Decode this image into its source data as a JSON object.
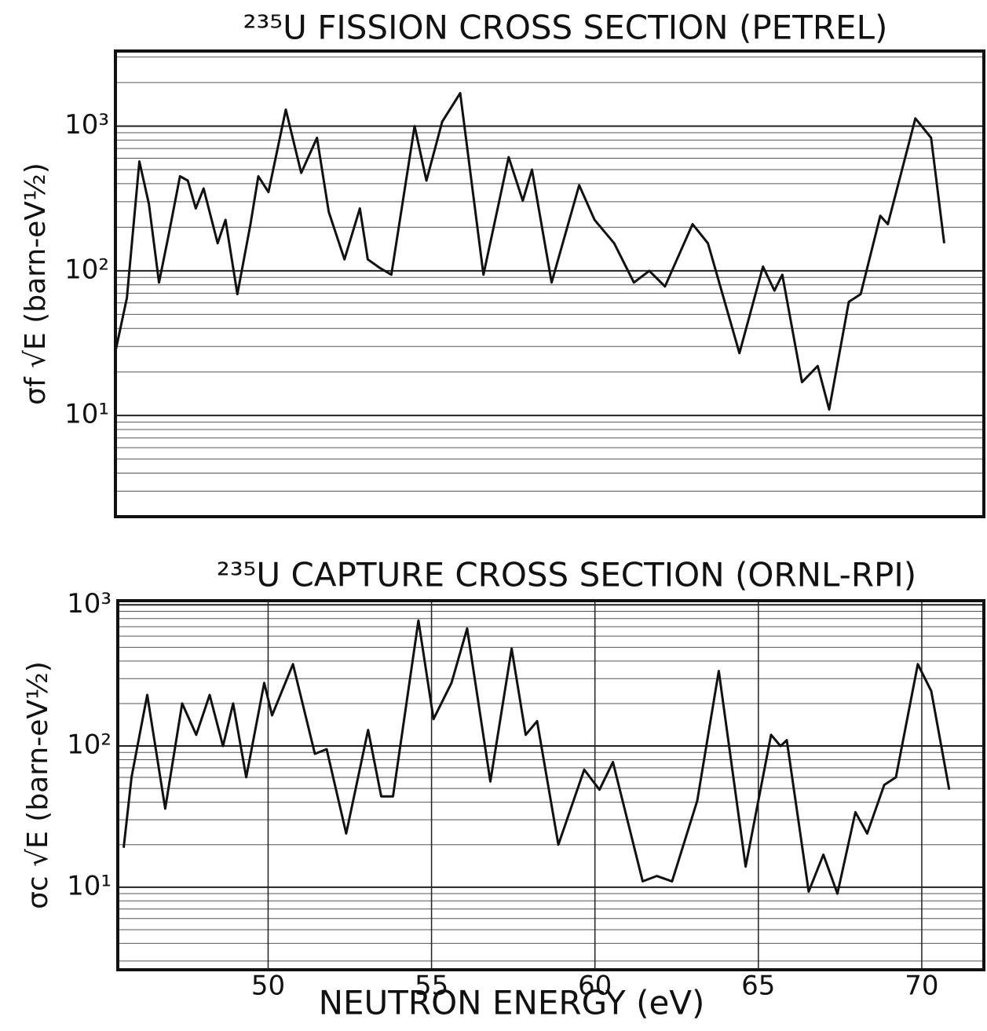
{
  "chart_data": [
    {
      "type": "line",
      "title": "²³⁵U FISSION CROSS SECTION (PETREL)",
      "y_label": "σf √E (barn-eV½)",
      "log_y": true,
      "grid": true,
      "color": "#111111",
      "xlim": [
        45.4,
        71.9
      ],
      "ylim": [
        2,
        3300
      ],
      "yticks": [
        {
          "value": 10,
          "label": "10¹"
        },
        {
          "value": 100,
          "label": "10²"
        },
        {
          "value": 1000,
          "label": "10³"
        }
      ],
      "x": [
        45.42,
        45.75,
        46.13,
        46.42,
        46.73,
        47.02,
        47.37,
        47.61,
        47.85,
        48.09,
        48.52,
        48.76,
        49.12,
        49.52,
        49.76,
        50.07,
        50.6,
        51.07,
        51.55,
        51.91,
        52.39,
        52.86,
        53.1,
        53.46,
        53.82,
        54.53,
        54.89,
        55.37,
        55.92,
        56.63,
        57.4,
        57.83,
        58.11,
        58.71,
        59.55,
        60.02,
        60.62,
        61.22,
        61.69,
        62.17,
        63.01,
        63.48,
        64.44,
        65.16,
        65.51,
        65.75,
        66.35,
        66.83,
        67.18,
        67.78,
        68.14,
        68.74,
        68.97,
        69.81,
        70.29,
        70.69
      ],
      "values": [
        29,
        65,
        570,
        290,
        83,
        175,
        450,
        420,
        270,
        370,
        155,
        225,
        69,
        210,
        450,
        350,
        1300,
        475,
        830,
        255,
        120,
        270,
        120,
        105,
        94,
        1000,
        420,
        1070,
        1690,
        94,
        610,
        305,
        500,
        83,
        390,
        225,
        155,
        83,
        100,
        78,
        210,
        155,
        27,
        107,
        73,
        94,
        17,
        22,
        11,
        61,
        69,
        240,
        210,
        1130,
        830,
        155
      ]
    },
    {
      "type": "line",
      "title": "²³⁵U CAPTURE CROSS SECTION (ORNL-RPI)",
      "y_label": "σc √E (barn-eV½)",
      "x_label": "NEUTRON ENERGY (eV)",
      "log_y": true,
      "grid": true,
      "color": "#111111",
      "xlim": [
        45.4,
        71.9
      ],
      "ylim": [
        2.6,
        1070
      ],
      "xticks": [
        50,
        55,
        60,
        65,
        70
      ],
      "yticks": [
        {
          "value": 10,
          "label": "10¹"
        },
        {
          "value": 100,
          "label": "10²"
        },
        {
          "value": 1000,
          "label": "10³"
        }
      ],
      "x": [
        45.58,
        45.82,
        46.3,
        46.85,
        47.37,
        47.8,
        48.21,
        48.62,
        48.93,
        49.33,
        49.88,
        50.12,
        50.76,
        51.43,
        51.79,
        52.39,
        53.06,
        53.46,
        53.82,
        54.6,
        55.06,
        55.61,
        56.09,
        56.8,
        57.45,
        57.88,
        58.23,
        58.88,
        59.67,
        60.14,
        60.55,
        61.46,
        61.89,
        62.36,
        63.13,
        63.79,
        64.61,
        65.39,
        65.68,
        65.87,
        66.54,
        66.99,
        67.42,
        67.97,
        68.33,
        68.85,
        69.21,
        69.88,
        70.29,
        70.84
      ],
      "values": [
        19,
        60,
        230,
        36,
        200,
        120,
        230,
        100,
        200,
        60,
        280,
        165,
        380,
        88,
        95,
        24,
        130,
        44,
        44,
        775,
        155,
        280,
        680,
        56,
        490,
        120,
        150,
        20,
        68,
        49,
        77,
        11,
        12,
        11,
        41,
        340,
        14,
        120,
        100,
        110,
        9.3,
        17,
        9,
        34,
        24,
        53,
        60,
        380,
        245,
        49
      ]
    }
  ]
}
